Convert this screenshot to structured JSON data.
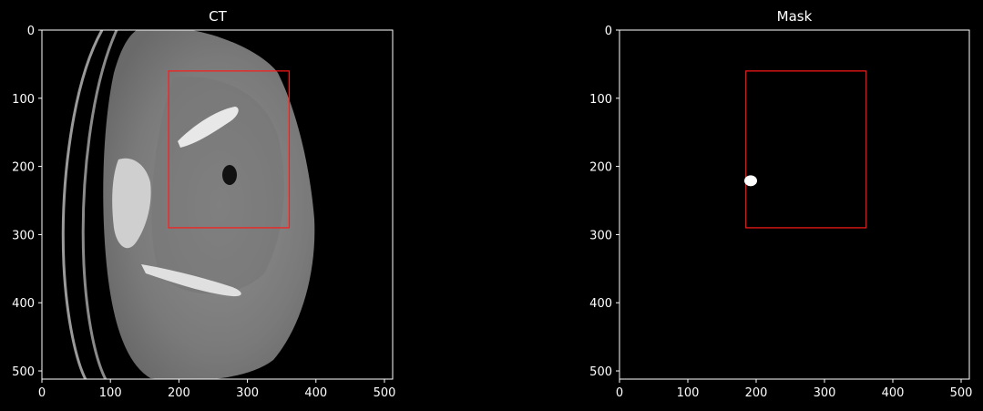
{
  "panels": [
    {
      "id": "ct",
      "title": "CT",
      "image": "ct-axial-pelvis-grayscale",
      "xticks": [
        "0",
        "100",
        "200",
        "300",
        "400",
        "500"
      ],
      "yticks": [
        "0",
        "100",
        "200",
        "300",
        "400",
        "500"
      ],
      "xtick_values": [
        0,
        100,
        200,
        300,
        400,
        500
      ],
      "ytick_values": [
        0,
        100,
        200,
        300,
        400,
        500
      ],
      "extent": [
        512,
        512
      ],
      "roi": {
        "x0": 185,
        "y0": 60,
        "x1": 361,
        "y1": 290
      }
    },
    {
      "id": "mask",
      "title": "Mask",
      "image": "binary-segmentation-mask",
      "xticks": [
        "0",
        "100",
        "200",
        "300",
        "400",
        "500"
      ],
      "yticks": [
        "0",
        "100",
        "200",
        "300",
        "400",
        "500"
      ],
      "xtick_values": [
        0,
        100,
        200,
        300,
        400,
        500
      ],
      "ytick_values": [
        0,
        100,
        200,
        300,
        400,
        500
      ],
      "extent": [
        512,
        512
      ],
      "roi": {
        "x0": 185,
        "y0": 60,
        "x1": 361,
        "y1": 290
      },
      "blob": {
        "x": 192,
        "y": 221
      }
    }
  ],
  "colors": {
    "background": "#000000",
    "text": "#ffffff",
    "roi": "#ff1a1a",
    "mask_foreground": "#ffffff"
  }
}
